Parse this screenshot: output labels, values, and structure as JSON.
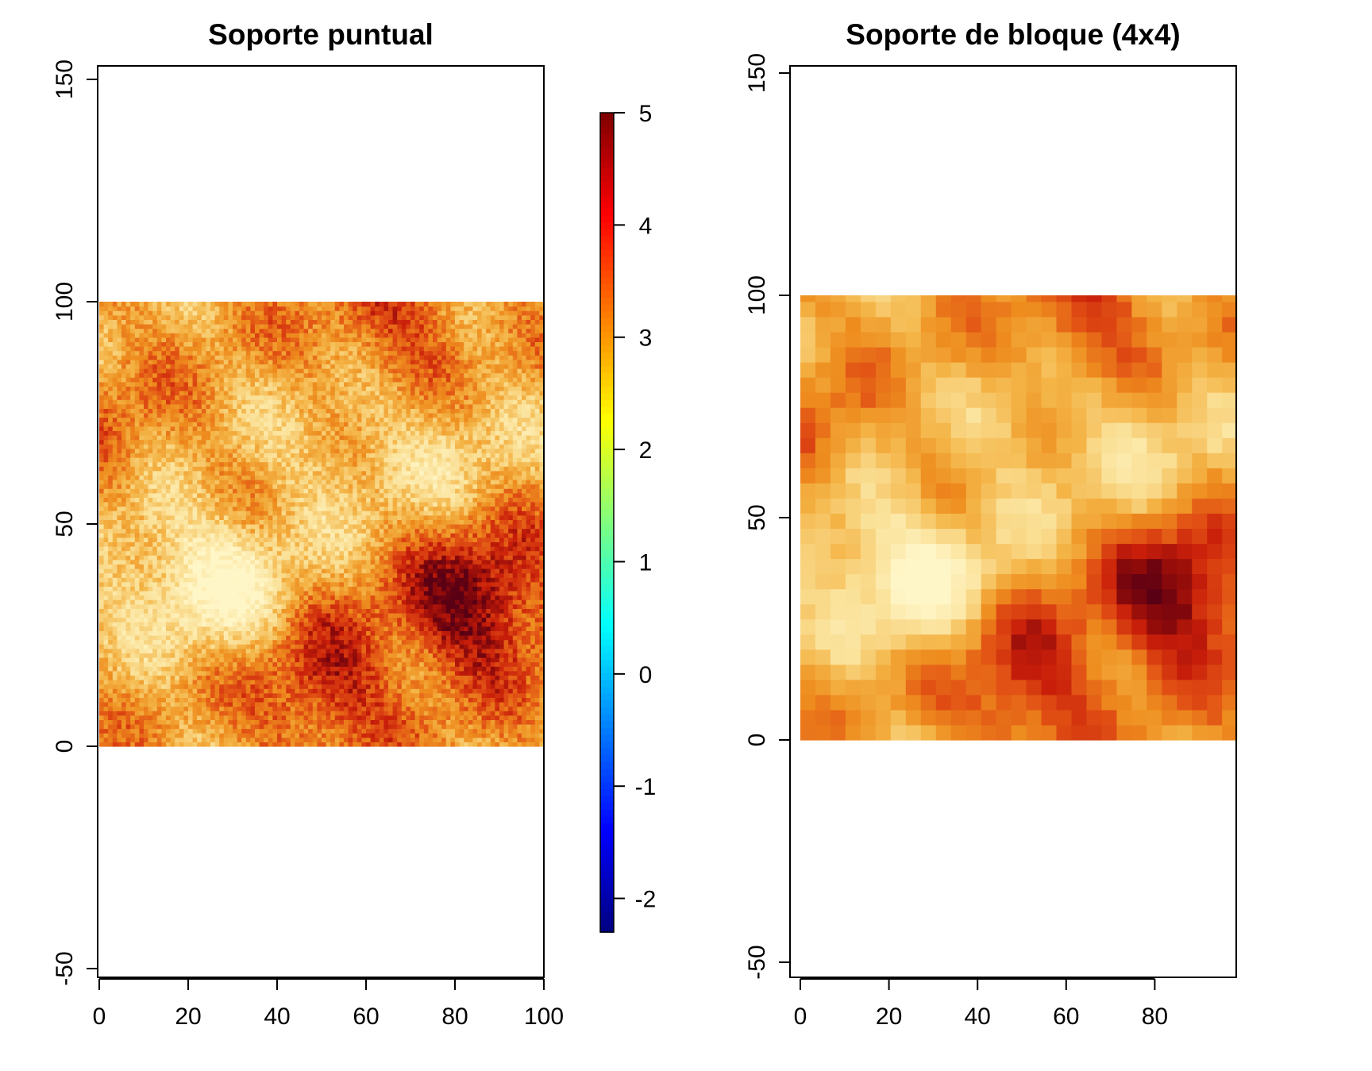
{
  "chart_data": [
    {
      "type": "heatmap",
      "title": "Soporte puntual",
      "xlabel": "",
      "ylabel": "",
      "xlim": [
        0,
        100
      ],
      "ylim": [
        -50,
        150
      ],
      "x_ticks": [
        "0",
        "20",
        "40",
        "60",
        "80",
        "100"
      ],
      "y_ticks": [
        "-50",
        "0",
        "50",
        "100",
        "150"
      ],
      "grid_extent": {
        "x": [
          0,
          100
        ],
        "y": [
          0,
          100
        ]
      },
      "cell_size": 1,
      "value_range": [
        -2.3,
        5
      ],
      "colorbar": {
        "ticks": [
          "-2",
          "-1",
          "0",
          "1",
          "2",
          "3",
          "4",
          "5"
        ],
        "range": [
          -2.3,
          5
        ],
        "colors": [
          "#00007F",
          "#0000FF",
          "#007FFF",
          "#00FFFF",
          "#7FFF7F",
          "#FFFF00",
          "#FF7F00",
          "#FF0000",
          "#7F0000"
        ]
      },
      "hotspots": [
        {
          "x": 85,
          "y": 32,
          "value": 5.0
        },
        {
          "x": 50,
          "y": 14,
          "value": 4.4
        },
        {
          "x": 68,
          "y": 93,
          "value": 4.0
        },
        {
          "x": 1,
          "y": 62,
          "value": 4.1
        },
        {
          "x": 28,
          "y": 35,
          "value": 1.6
        },
        {
          "x": 5,
          "y": 50,
          "value": 1.9
        },
        {
          "x": 80,
          "y": 70,
          "value": 2.3
        },
        {
          "x": 55,
          "y": 65,
          "value": 2.4
        }
      ]
    },
    {
      "type": "heatmap",
      "title": "Soporte de bloque (4x4)",
      "xlabel": "",
      "ylabel": "",
      "xlim": [
        0,
        100
      ],
      "ylim": [
        -50,
        150
      ],
      "x_ticks": [
        "0",
        "20",
        "40",
        "60",
        "80"
      ],
      "y_ticks": [
        "-50",
        "0",
        "50",
        "100",
        "150"
      ],
      "grid_extent": {
        "x": [
          0,
          100
        ],
        "y": [
          0,
          100
        ]
      },
      "cell_size": 3.4,
      "value_range": [
        -2.3,
        5
      ]
    }
  ]
}
